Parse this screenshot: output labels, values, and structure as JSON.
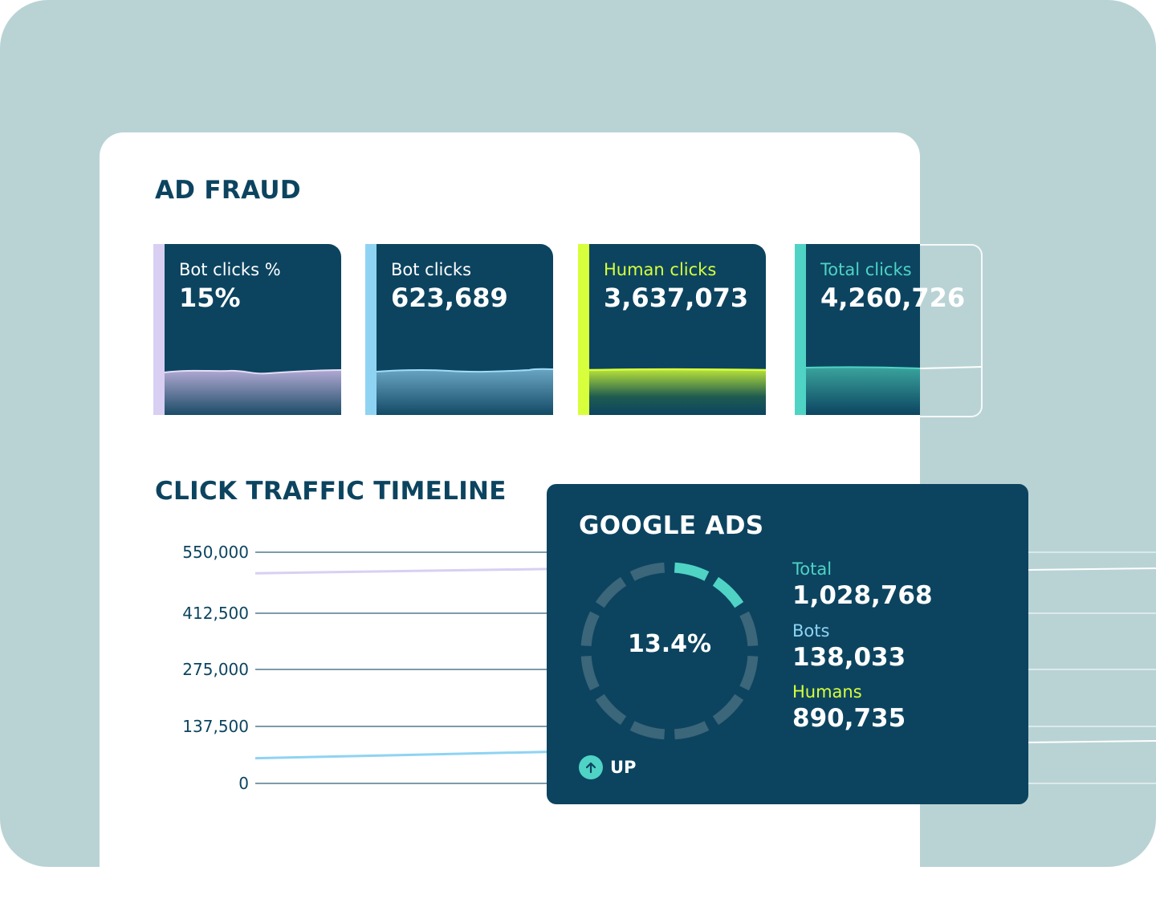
{
  "colors": {
    "page_background": "#b9d3d5",
    "card_background": "#ffffff",
    "navy": "#0c4460",
    "lavender": "#d9cff3",
    "light_blue": "#8fd3f3",
    "lime": "#d8ff3b",
    "teal": "#4fd3c4"
  },
  "ad_fraud": {
    "title": "AD FRAUD",
    "stats": [
      {
        "label": "Bot clicks %",
        "value": "15%",
        "accent": "#d9cff3",
        "label_color": "#ffffff"
      },
      {
        "label": "Bot clicks",
        "value": "623,689",
        "accent": "#8fd3f3",
        "label_color": "#ffffff"
      },
      {
        "label": "Human clicks",
        "value": "3,637,073",
        "accent": "#d8ff3b",
        "label_color": "#d8ff3b"
      },
      {
        "label": "Total clicks",
        "value": "4,260,726",
        "accent": "#4fd3c4",
        "label_color": "#4fd3c4"
      }
    ]
  },
  "timeline": {
    "title": "CLICK TRAFFIC TIMELINE",
    "y_ticks": [
      "550,000",
      "412,500",
      "275,000",
      "137,500",
      "0"
    ]
  },
  "chart_data": {
    "type": "line",
    "title": "CLICK TRAFFIC TIMELINE",
    "ylim": [
      0,
      550000
    ],
    "y_ticks": [
      0,
      137500,
      275000,
      412500,
      550000
    ],
    "grid": true,
    "series": [
      {
        "values": [
          500000,
          510000
        ],
        "color": "#d9cff3"
      },
      {
        "values": [
          60000,
          75000
        ],
        "color": "#8fd3f3"
      }
    ]
  },
  "google_ads": {
    "title": "GOOGLE ADS",
    "percentage": "13.4%",
    "percentage_value": 13.4,
    "total_label": "Total",
    "total_value": "1,028,768",
    "bots_label": "Bots",
    "bots_value": "138,033",
    "humans_label": "Humans",
    "humans_value": "890,735",
    "trend_label": "UP",
    "trend_icon": "arrow-up-icon"
  }
}
